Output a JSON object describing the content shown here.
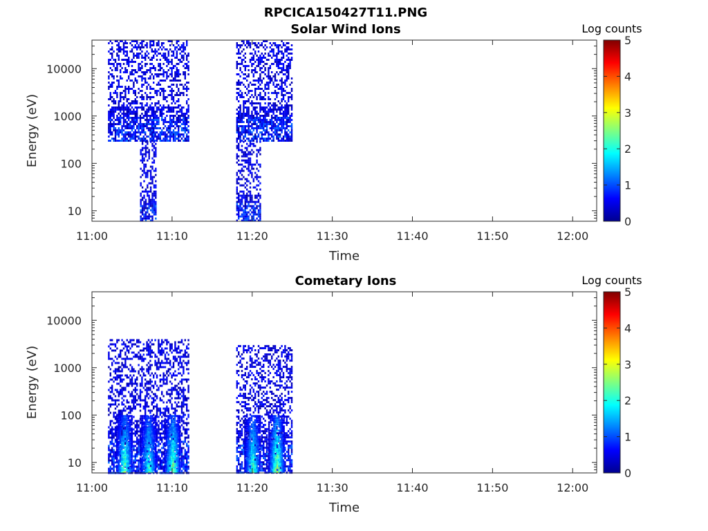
{
  "figure": {
    "title": "RPCICA150427T11.PNG"
  },
  "colormap": [
    "#00008f",
    "#0000ff",
    "#0080ff",
    "#00ffff",
    "#80ff80",
    "#ffff00",
    "#ff8000",
    "#ff0000",
    "#800000"
  ],
  "chart_data": [
    {
      "type": "heatmap",
      "title": "Solar Wind Ions",
      "xlabel": "Time",
      "ylabel": "Energy (eV)",
      "x_ticks": [
        "11:00",
        "11:10",
        "11:20",
        "11:30",
        "11:40",
        "11:50",
        "12:00"
      ],
      "x_range": [
        "11:00",
        "12:03"
      ],
      "y_scale": "log",
      "y_ticks": [
        "10",
        "100",
        "1000",
        "10000"
      ],
      "y_range": [
        6,
        40000
      ],
      "colorbar": {
        "label": "Log counts",
        "range": [
          0,
          5
        ],
        "ticks": [
          "0",
          "1",
          "2",
          "3",
          "4",
          "5"
        ]
      },
      "bursts": [
        {
          "start": "11:02",
          "end": "11:12",
          "energy_min": 300,
          "energy_max": 40000,
          "log_counts_max": 1.0
        },
        {
          "start": "11:06",
          "end": "11:08",
          "energy_min": 6,
          "energy_max": 300,
          "log_counts_max": 1.0
        },
        {
          "start": "11:18",
          "end": "11:25",
          "energy_min": 300,
          "energy_max": 40000,
          "log_counts_max": 1.0
        },
        {
          "start": "11:18",
          "end": "11:21",
          "energy_min": 6,
          "energy_max": 300,
          "log_counts_max": 1.0
        }
      ]
    },
    {
      "type": "heatmap",
      "title": "Cometary Ions",
      "xlabel": "Time",
      "ylabel": "Energy (eV)",
      "x_ticks": [
        "11:00",
        "11:10",
        "11:20",
        "11:30",
        "11:40",
        "11:50",
        "12:00"
      ],
      "x_range": [
        "11:00",
        "12:03"
      ],
      "y_scale": "log",
      "y_ticks": [
        "10",
        "100",
        "1000",
        "10000"
      ],
      "y_range": [
        6,
        40000
      ],
      "colorbar": {
        "label": "Log counts",
        "range": [
          0,
          5
        ],
        "ticks": [
          "0",
          "1",
          "2",
          "3",
          "4",
          "5"
        ]
      },
      "bursts": [
        {
          "start": "11:02",
          "end": "11:12",
          "energy_min": 6,
          "energy_max": 4000,
          "log_counts_max": 1.0
        },
        {
          "start": "11:18",
          "end": "11:25",
          "energy_min": 6,
          "energy_max": 3000,
          "log_counts_max": 1.0
        },
        {
          "start": "11:03",
          "end": "11:05",
          "energy_min": 6,
          "energy_max": 100,
          "log_counts_max": 2.6
        },
        {
          "start": "11:06",
          "end": "11:08",
          "energy_min": 6,
          "energy_max": 100,
          "log_counts_max": 2.3
        },
        {
          "start": "11:09",
          "end": "11:11",
          "energy_min": 6,
          "energy_max": 100,
          "log_counts_max": 2.8
        },
        {
          "start": "11:19",
          "end": "11:21",
          "energy_min": 6,
          "energy_max": 100,
          "log_counts_max": 2.4
        },
        {
          "start": "11:22",
          "end": "11:24",
          "energy_min": 6,
          "energy_max": 100,
          "log_counts_max": 2.9
        }
      ]
    }
  ]
}
